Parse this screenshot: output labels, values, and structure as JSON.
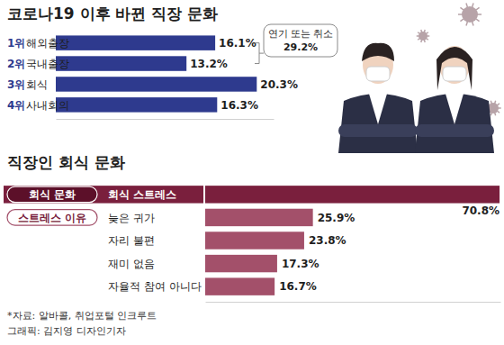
{
  "chart_data": [
    {
      "type": "bar",
      "orientation": "horizontal",
      "title": "코로나19 이후 바뀐 직장 문화",
      "rank_labels": [
        "1위",
        "2위",
        "3위",
        "4위"
      ],
      "categories": [
        "해외출장",
        "국내출장",
        "회식",
        "사내회의"
      ],
      "values": [
        16.1,
        13.2,
        20.3,
        16.3
      ],
      "value_labels": [
        "16.1%",
        "13.2%",
        "20.3%",
        "16.3%"
      ],
      "data_labels": true,
      "color": "#2e3a8e",
      "xlim": [
        0,
        22
      ],
      "tick_labels": false,
      "annotations": [
        {
          "text": "연기 또는 취소",
          "label": "29.2%"
        }
      ]
    },
    {
      "type": "bar",
      "orientation": "horizontal",
      "title": "직장인 회식 문화",
      "category_groups": [
        "회식 문화",
        "스트레스 이유",
        null,
        null,
        null
      ],
      "categories": [
        "회식 스트레스",
        "늦은 귀가",
        "자리 불편",
        "재미 없음",
        "자율적 참여 아니다"
      ],
      "values": [
        70.8,
        25.9,
        23.8,
        17.3,
        16.7
      ],
      "value_labels": [
        "70.8%",
        "25.9%",
        "23.8%",
        "17.3%",
        "16.7%"
      ],
      "data_labels": true,
      "colors": [
        "#7a1f3d",
        "#a3506a",
        "#a3506a",
        "#a3506a",
        "#a3506a"
      ],
      "xlim": [
        0,
        71
      ],
      "tick_labels": false
    }
  ],
  "source": "*자료: 알바콜, 취업포털 인크루트",
  "credit": "그래픽: 김지영 디자인기자"
}
